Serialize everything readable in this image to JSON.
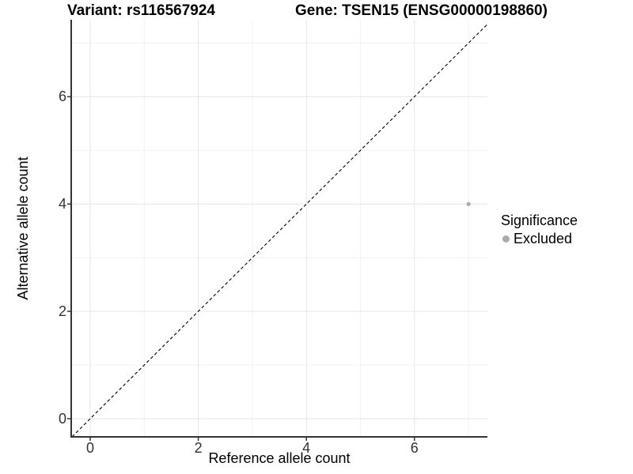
{
  "header": {
    "variant_title": "Variant: rs116567924",
    "gene_title": "Gene: TSEN15 (ENSG00000198860)"
  },
  "chart_data": {
    "type": "scatter",
    "xlabel": "Reference allele count",
    "ylabel": "Alternative allele count",
    "x_ticks": [
      0,
      2,
      4,
      6
    ],
    "y_ticks": [
      0,
      2,
      4,
      6
    ],
    "x_minor_ticks": [
      1,
      3,
      5,
      7
    ],
    "y_minor_ticks": [
      1,
      3,
      5,
      7
    ],
    "xlim": [
      -0.35,
      7.35
    ],
    "ylim": [
      -0.38,
      7.43
    ],
    "grid": "major+minor",
    "identity_line": {
      "style": "dashed",
      "equation": "y = x",
      "color": "#000000"
    },
    "series": [
      {
        "name": "Excluded",
        "color": "#ababab",
        "points": [
          {
            "x": 7,
            "y": 4
          }
        ]
      }
    ],
    "legend": {
      "title": "Significance",
      "position": "right",
      "items": [
        {
          "label": "Excluded",
          "color": "#ababab"
        }
      ]
    },
    "colors": {
      "background": "#ffffff",
      "grid_major": "#e6e6e6",
      "grid_minor": "#f2f2f2",
      "axis_line": "#333333",
      "tick_mark": "#333333",
      "tick_text": "#333333",
      "point": "#ababab"
    }
  }
}
